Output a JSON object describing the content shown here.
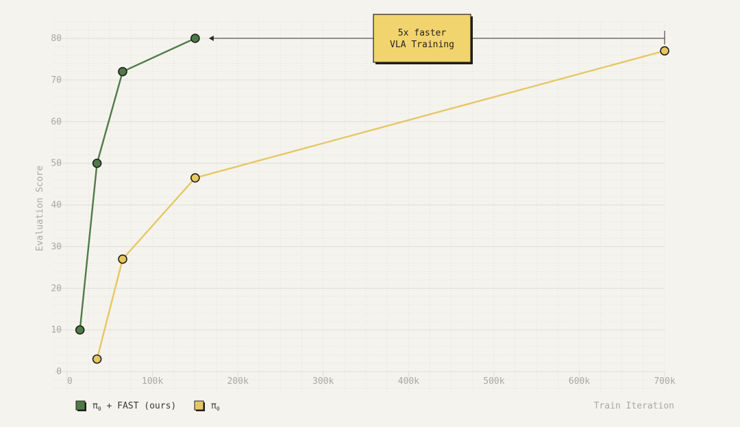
{
  "chart_data": {
    "type": "line",
    "xlabel": "Train Iteration",
    "ylabel": "Evaluation Score",
    "xlim": [
      0,
      700000
    ],
    "ylim": [
      0,
      80
    ],
    "xticks": [
      "0",
      "100k",
      "200k",
      "300k",
      "400k",
      "500k",
      "600k",
      "700k"
    ],
    "xtick_values": [
      0,
      100000,
      200000,
      300000,
      400000,
      500000,
      600000,
      700000
    ],
    "yticks": [
      "0",
      "10",
      "20",
      "30",
      "40",
      "50",
      "60",
      "70",
      "80"
    ],
    "ytick_values": [
      0,
      10,
      20,
      30,
      40,
      50,
      60,
      70,
      80
    ],
    "grid": true,
    "legend_placement": "bottom-left",
    "series": [
      {
        "name": "π₀ + FAST (ours)",
        "legend_main": "π",
        "legend_sub": "0",
        "legend_rest": "+ FAST (ours)",
        "color": "#4f7a45",
        "x": [
          15000,
          35000,
          65000,
          150000
        ],
        "y": [
          10,
          50,
          72,
          80
        ]
      },
      {
        "name": "π₀",
        "legend_main": "π",
        "legend_sub": "0",
        "legend_rest": "",
        "color": "#e6c763",
        "x": [
          35000,
          65000,
          150000,
          700000
        ],
        "y": [
          3,
          27,
          46.5,
          77
        ]
      }
    ],
    "annotation": {
      "line1": "5x faster",
      "line2": "VLA Training",
      "from_x": 150000,
      "to_x": 700000,
      "y": 80,
      "box_color": "#f2d46f"
    }
  }
}
